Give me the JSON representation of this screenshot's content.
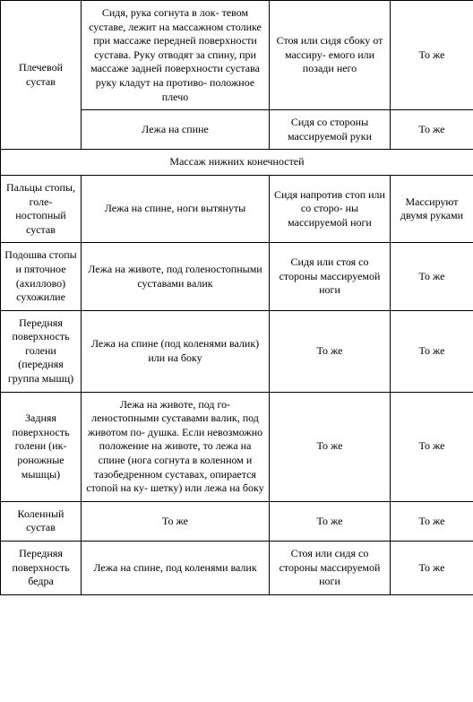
{
  "rows": [
    {
      "cells": [
        {
          "text": "Плечевой сустав",
          "rowspan": 2,
          "class": "col1"
        },
        {
          "text": "Сидя, рука согнута в лок-\nтевом суставе, лежит на массажном столике при массаже передней поверхности сустава. Руку отводят за спину, при массаже задней поверхности сустава руку кладут на противо-\nположное плечо",
          "class": "col2"
        },
        {
          "text": "Стоя или сидя сбоку от массиру-\nемого или позади него",
          "class": "col3"
        },
        {
          "text": "То же",
          "class": "col4"
        }
      ]
    },
    {
      "cells": [
        {
          "text": "Лежа на спине",
          "class": "col2"
        },
        {
          "text": "Сидя со стороны массируемой руки",
          "class": "col3"
        },
        {
          "text": "То же",
          "class": "col4"
        }
      ]
    },
    {
      "cells": [
        {
          "text": "Массаж нижних конечностей",
          "colspan": 4,
          "class": "section-header"
        }
      ]
    },
    {
      "cells": [
        {
          "text": "Пальцы стопы, голе-\nностопный сустав",
          "class": "col1"
        },
        {
          "text": "Лежа на спине, ноги вытянуты",
          "class": "col2"
        },
        {
          "text": "Сидя напротив стоп или со сторо-\nны массируемой ноги",
          "class": "col3"
        },
        {
          "text": "Массируют двумя руками",
          "class": "col4"
        }
      ]
    },
    {
      "cells": [
        {
          "text": "Подошва стопы и пяточное (ахиллово) сухожилие",
          "class": "col1"
        },
        {
          "text": "Лежа на животе, под голеностопными суставами валик",
          "class": "col2"
        },
        {
          "text": "Сидя или стоя со стороны массируемой ноги",
          "class": "col3"
        },
        {
          "text": "То же",
          "class": "col4"
        }
      ]
    },
    {
      "cells": [
        {
          "text": "Передняя поверхность голени (передняя группа мышц)",
          "class": "col1"
        },
        {
          "text": "Лежа на спине (под коленями валик) или на боку",
          "class": "col2"
        },
        {
          "text": "То же",
          "class": "col3"
        },
        {
          "text": "То же",
          "class": "col4"
        }
      ]
    },
    {
      "cells": [
        {
          "text": "Задняя поверхность голени (ик-\nроножные мышцы)",
          "class": "col1"
        },
        {
          "text": "Лежа на животе, под го-\nленостопными суставами валик, под животом по-\nдушка. Если невозможно положение на животе, то лежа на спине (нога согнута в коленном и тазобедренном суставах, опирается стопой на ку-\nшетку) или лежа на боку",
          "class": "col2"
        },
        {
          "text": "То же",
          "class": "col3"
        },
        {
          "text": "То же",
          "class": "col4"
        }
      ]
    },
    {
      "cells": [
        {
          "text": "Коленный сустав",
          "class": "col1"
        },
        {
          "text": "То же",
          "class": "col2"
        },
        {
          "text": "То же",
          "class": "col3"
        },
        {
          "text": "То же",
          "class": "col4"
        }
      ]
    },
    {
      "cells": [
        {
          "text": "Передняя поверхность бедра",
          "class": "col1"
        },
        {
          "text": "Лежа на спине, под коленями валик",
          "class": "col2"
        },
        {
          "text": "Стоя или сидя со стороны массируемой ноги",
          "class": "col3"
        },
        {
          "text": "То же",
          "class": "col4"
        }
      ]
    }
  ]
}
